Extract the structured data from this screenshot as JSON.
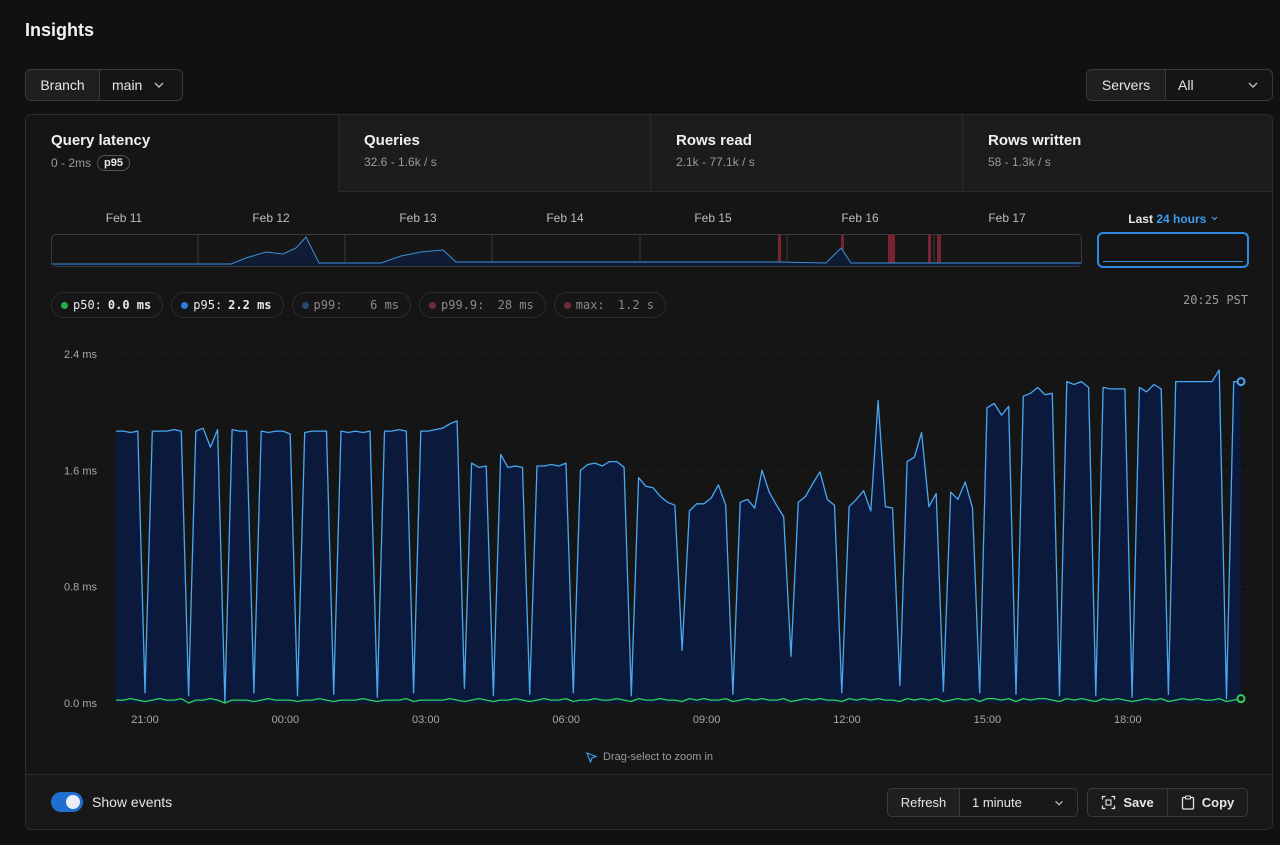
{
  "page": {
    "title": "Insights"
  },
  "branch": {
    "label": "Branch",
    "value": "main"
  },
  "servers": {
    "label": "Servers",
    "value": "All"
  },
  "tabs": [
    {
      "title": "Query latency",
      "subtitle": "0 - 2ms",
      "badge": "p95"
    },
    {
      "title": "Queries",
      "subtitle": "32.6 - 1.6k / s"
    },
    {
      "title": "Rows read",
      "subtitle": "2.1k - 77.1k / s"
    },
    {
      "title": "Rows written",
      "subtitle": "58 - 1.3k / s"
    }
  ],
  "overview": {
    "labels": [
      "Feb 11",
      "Feb 12",
      "Feb 13",
      "Feb 14",
      "Feb 15",
      "Feb 16",
      "Feb 17"
    ],
    "range_prefix": "Last",
    "range_value": "24 hours"
  },
  "legend": [
    {
      "name": "p50:",
      "value": "0.0 ms",
      "color": "#22b04b"
    },
    {
      "name": "p95:",
      "value": "2.2 ms",
      "color": "#2a7de1"
    },
    {
      "name": "p99:",
      "value": "6 ms",
      "color": "#274a6e"
    },
    {
      "name": "p99.9:",
      "value": "28 ms",
      "color": "#6e2a35"
    },
    {
      "name": "max:",
      "value": "1.2 s",
      "color": "#6e2a35"
    }
  ],
  "timestamp": "20:25 PST",
  "chart_data": {
    "type": "area",
    "y_ticks": [
      "2.4 ms",
      "1.6 ms",
      "0.8 ms",
      "0.0 ms"
    ],
    "ylim": [
      0,
      2.4
    ],
    "x_ticks": [
      "21:00",
      "00:00",
      "03:00",
      "06:00",
      "09:00",
      "12:00",
      "15:00",
      "18:00"
    ],
    "series": [
      {
        "name": "p95",
        "color": "#4aa8f0",
        "values": [
          1.87,
          1.87,
          1.86,
          1.87,
          0.07,
          1.87,
          1.87,
          1.87,
          1.88,
          1.87,
          0.05,
          1.87,
          1.89,
          1.76,
          1.88,
          0.0,
          1.88,
          1.87,
          1.87,
          0.07,
          1.87,
          1.86,
          1.87,
          1.87,
          1.85,
          0.05,
          1.86,
          1.87,
          1.87,
          1.87,
          0.06,
          1.87,
          1.86,
          1.87,
          1.86,
          1.87,
          0.04,
          1.87,
          1.87,
          1.88,
          1.87,
          0.07,
          1.87,
          1.87,
          1.88,
          1.89,
          1.92,
          1.94,
          0.1,
          1.65,
          1.62,
          1.63,
          0.05,
          1.71,
          1.62,
          1.63,
          1.62,
          0.06,
          1.63,
          1.63,
          1.64,
          1.63,
          1.65,
          0.07,
          1.6,
          1.64,
          1.65,
          1.63,
          1.66,
          1.66,
          1.62,
          0.05,
          1.55,
          1.49,
          1.48,
          1.42,
          1.38,
          1.36,
          0.36,
          1.32,
          1.37,
          1.37,
          1.41,
          1.5,
          1.36,
          0.06,
          1.38,
          1.4,
          1.34,
          1.6,
          1.45,
          1.36,
          1.28,
          0.32,
          1.38,
          1.42,
          1.51,
          1.59,
          1.4,
          1.36,
          0.07,
          1.35,
          1.4,
          1.46,
          1.32,
          2.08,
          1.35,
          1.34,
          0.12,
          1.66,
          1.69,
          1.86,
          1.35,
          1.44,
          0.08,
          1.45,
          1.4,
          1.52,
          1.34,
          0.07,
          2.03,
          2.06,
          1.98,
          2.04,
          0.06,
          2.11,
          2.13,
          2.17,
          2.12,
          2.13,
          0.05,
          2.21,
          2.19,
          2.21,
          2.17,
          0.05,
          2.17,
          2.16,
          2.16,
          2.16,
          0.04,
          2.17,
          2.14,
          2.19,
          2.16,
          0.06,
          2.21,
          2.21,
          2.21,
          2.21,
          2.21,
          2.21,
          2.29,
          0.03,
          2.21,
          2.21
        ]
      },
      {
        "name": "p50",
        "color": "#2bd45a",
        "values": [
          0.02,
          0.02,
          0.03,
          0.02,
          0.01,
          0.02,
          0.03,
          0.02,
          0.02,
          0.03,
          0.0,
          0.02,
          0.02,
          0.03,
          0.02,
          0.0,
          0.02,
          0.02,
          0.02,
          0.01,
          0.02,
          0.03,
          0.02,
          0.02,
          0.02,
          0.01,
          0.02,
          0.02,
          0.03,
          0.02,
          0.01,
          0.02,
          0.02,
          0.02,
          0.03,
          0.02,
          0.01,
          0.02,
          0.02,
          0.02,
          0.03,
          0.01,
          0.02,
          0.02,
          0.02,
          0.02,
          0.03,
          0.02,
          0.01,
          0.02,
          0.03,
          0.02,
          0.01,
          0.02,
          0.02,
          0.03,
          0.02,
          0.01,
          0.02,
          0.03,
          0.02,
          0.02,
          0.03,
          0.01,
          0.02,
          0.02,
          0.03,
          0.02,
          0.02,
          0.03,
          0.02,
          0.01,
          0.03,
          0.02,
          0.02,
          0.03,
          0.02,
          0.02,
          0.01,
          0.03,
          0.02,
          0.03,
          0.02,
          0.02,
          0.03,
          0.01,
          0.02,
          0.03,
          0.02,
          0.03,
          0.02,
          0.02,
          0.03,
          0.01,
          0.02,
          0.03,
          0.02,
          0.03,
          0.02,
          0.02,
          0.01,
          0.03,
          0.02,
          0.03,
          0.02,
          0.03,
          0.02,
          0.02,
          0.01,
          0.03,
          0.02,
          0.03,
          0.02,
          0.03,
          0.01,
          0.02,
          0.03,
          0.02,
          0.03,
          0.01,
          0.03,
          0.03,
          0.02,
          0.03,
          0.01,
          0.03,
          0.02,
          0.03,
          0.03,
          0.02,
          0.01,
          0.03,
          0.02,
          0.03,
          0.02,
          0.01,
          0.03,
          0.02,
          0.03,
          0.02,
          0.01,
          0.02,
          0.03,
          0.02,
          0.03,
          0.01,
          0.02,
          0.03,
          0.02,
          0.03,
          0.02,
          0.02,
          0.03,
          0.01,
          0.02,
          0.03
        ]
      }
    ]
  },
  "hint": "Drag-select to zoom in",
  "footer": {
    "show_events": "Show events",
    "refresh_label": "Refresh",
    "refresh_value": "1 minute",
    "save_label": "Save",
    "copy_label": "Copy"
  },
  "colors": {
    "accent": "#2f8ae6",
    "p95_fill": "#0b1a3c",
    "event_marker": "#7a2330"
  }
}
